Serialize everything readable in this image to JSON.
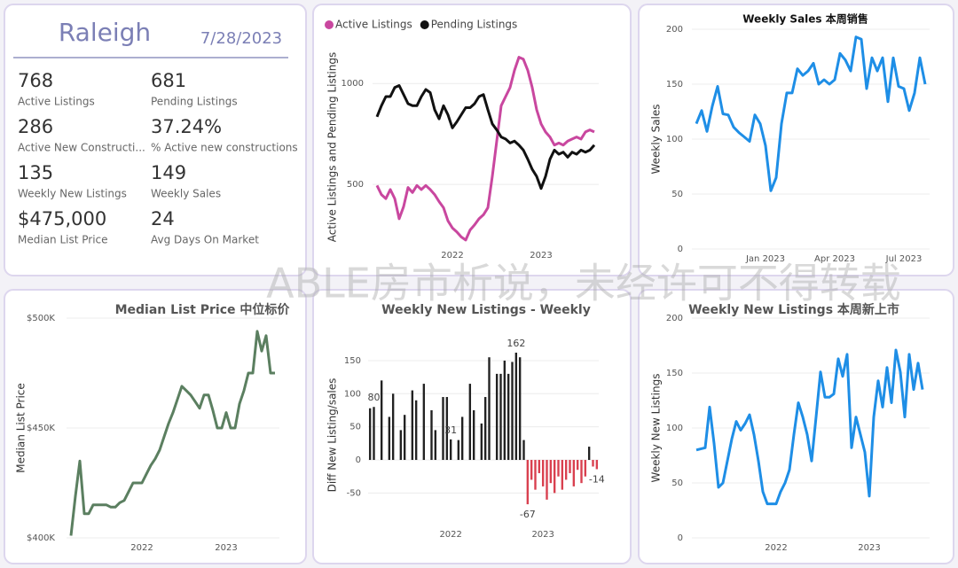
{
  "kpi": {
    "city": "Raleigh",
    "date": "7/28/2023",
    "items": [
      {
        "value": "768",
        "label": "Active Listings"
      },
      {
        "value": "681",
        "label": "Pending Listings"
      },
      {
        "value": "286",
        "label": "Active New Constructi..."
      },
      {
        "value": "37.24%",
        "label": "% Active new constructions"
      },
      {
        "value": "135",
        "label": "Weekly New Listings"
      },
      {
        "value": "149",
        "label": "Weekly Sales"
      },
      {
        "value": "$475,000",
        "label": "Median List Price"
      },
      {
        "value": "24",
        "label": "Avg Days On Market"
      }
    ]
  },
  "watermark": "ABLE房市析说，未经许可不得转载",
  "chart_data": [
    {
      "type": "line",
      "y_label": "Active Listings and Pending Listings",
      "categories": [
        null,
        null,
        null,
        null,
        null,
        null,
        null,
        null,
        null,
        null,
        null,
        null,
        null,
        null,
        null,
        null,
        null,
        "2022",
        null,
        null,
        null,
        null,
        null,
        null,
        null,
        null,
        null,
        null,
        null,
        null,
        null,
        null,
        null,
        null,
        null,
        null,
        null,
        "2023",
        null,
        null,
        null,
        null,
        null,
        null,
        null,
        null,
        null,
        null,
        null,
        null
      ],
      "series": [
        {
          "name": "Active Listings",
          "color": "#c9479f",
          "values": [
            495,
            450,
            430,
            475,
            430,
            330,
            390,
            485,
            460,
            495,
            475,
            495,
            475,
            450,
            415,
            385,
            320,
            285,
            265,
            240,
            225,
            275,
            300,
            330,
            350,
            385,
            540,
            715,
            890,
            935,
            980,
            1065,
            1130,
            1120,
            1065,
            980,
            870,
            800,
            760,
            735,
            695,
            705,
            695,
            715,
            725,
            735,
            725,
            760,
            770,
            760
          ]
        },
        {
          "name": "Pending Listings",
          "color": "#111111",
          "values": [
            835,
            890,
            935,
            935,
            980,
            990,
            945,
            900,
            890,
            890,
            935,
            970,
            955,
            870,
            825,
            890,
            845,
            780,
            810,
            845,
            880,
            880,
            900,
            935,
            945,
            870,
            800,
            770,
            735,
            725,
            705,
            715,
            695,
            670,
            625,
            575,
            540,
            480,
            540,
            625,
            670,
            650,
            660,
            635,
            660,
            650,
            670,
            660,
            670,
            695
          ]
        }
      ],
      "ylim": [
        220,
        1150
      ],
      "yticks": [
        500,
        1000
      ],
      "grid": true
    },
    {
      "type": "line",
      "title": "Weekly Sales 本周销售",
      "y_label": "Weekly Sales",
      "categories": [
        null,
        null,
        null,
        null,
        null,
        null,
        null,
        null,
        null,
        null,
        null,
        null,
        null,
        "Jan 2023",
        null,
        null,
        null,
        null,
        null,
        null,
        null,
        null,
        null,
        null,
        null,
        null,
        "Apr 2023",
        null,
        null,
        null,
        null,
        null,
        null,
        null,
        null,
        null,
        null,
        null,
        null,
        "Jul 2023",
        null,
        null,
        null,
        null
      ],
      "values": [
        114,
        126,
        107,
        130,
        148,
        123,
        122,
        111,
        106,
        102,
        98,
        122,
        114,
        94,
        53,
        65,
        114,
        142,
        142,
        164,
        158,
        162,
        169,
        150,
        154,
        150,
        154,
        178,
        172,
        162,
        193,
        191,
        146,
        174,
        162,
        174,
        134,
        174,
        148,
        146,
        126,
        142,
        174,
        150
      ],
      "color": "#1e8ee6",
      "ylim": [
        0,
        200
      ],
      "yticks": [
        0,
        50,
        100,
        150,
        200
      ],
      "grid": true
    },
    {
      "type": "line",
      "title": "Median List Price  中位标价",
      "y_label": "Median List Price",
      "categories": [
        null,
        null,
        null,
        null,
        null,
        null,
        null,
        null,
        null,
        null,
        null,
        null,
        null,
        null,
        null,
        null,
        "2022",
        null,
        null,
        null,
        null,
        null,
        null,
        null,
        null,
        null,
        null,
        null,
        null,
        null,
        null,
        null,
        null,
        null,
        null,
        "2023",
        null,
        null,
        null,
        null,
        null,
        null,
        null,
        null,
        null,
        null,
        null
      ],
      "values": [
        401000,
        419000,
        435000,
        411000,
        411000,
        415000,
        415000,
        415000,
        415000,
        414000,
        414000,
        416000,
        417000,
        421000,
        425000,
        425000,
        425000,
        429000,
        433000,
        436000,
        440000,
        446000,
        452000,
        457000,
        463000,
        469000,
        467000,
        465000,
        462000,
        459000,
        465000,
        465000,
        458000,
        450000,
        450000,
        457000,
        450000,
        450000,
        461000,
        467000,
        475000,
        475000,
        494000,
        485000,
        492000,
        475000,
        475000
      ],
      "color": "#5b7f60",
      "ylim": [
        400000,
        500000
      ],
      "yticks": [
        {
          "value": 400000,
          "label": "$400K"
        },
        {
          "value": 450000,
          "label": "$450K"
        },
        {
          "value": 500000,
          "label": "$500K"
        }
      ],
      "grid": true
    },
    {
      "type": "bar",
      "title": "Weekly New Listings - Weekly",
      "y_label": "Diff New Listing/sales",
      "categories": [
        null,
        null,
        null,
        null,
        null,
        null,
        null,
        null,
        null,
        null,
        null,
        null,
        null,
        null,
        null,
        null,
        null,
        null,
        null,
        null,
        null,
        "2022",
        null,
        null,
        null,
        null,
        null,
        null,
        null,
        null,
        null,
        null,
        null,
        null,
        null,
        null,
        null,
        null,
        null,
        null,
        null,
        null,
        null,
        null,
        null,
        "2023",
        null,
        null,
        null,
        null,
        null,
        null,
        null,
        null,
        null,
        null,
        null,
        null,
        null,
        null
      ],
      "values": [
        78,
        80,
        null,
        120,
        null,
        65,
        100,
        null,
        45,
        68,
        null,
        105,
        90,
        null,
        115,
        null,
        75,
        45,
        null,
        95,
        95,
        31,
        null,
        30,
        65,
        null,
        115,
        75,
        null,
        55,
        95,
        155,
        null,
        130,
        130,
        150,
        130,
        148,
        162,
        155,
        30,
        -67,
        -30,
        -45,
        -20,
        -40,
        -60,
        -35,
        -50,
        -25,
        -45,
        -30,
        -20,
        -40,
        -15,
        -35,
        -25,
        20,
        -10,
        -14
      ],
      "value_labels": [
        null,
        "80",
        null,
        null,
        null,
        null,
        null,
        null,
        null,
        null,
        null,
        null,
        null,
        null,
        null,
        null,
        null,
        null,
        null,
        null,
        null,
        "31",
        null,
        null,
        null,
        null,
        null,
        null,
        null,
        null,
        null,
        null,
        null,
        null,
        null,
        null,
        null,
        null,
        "162",
        null,
        null,
        "-67",
        null,
        null,
        null,
        null,
        null,
        null,
        null,
        null,
        null,
        null,
        null,
        null,
        null,
        null,
        null,
        null,
        null,
        "-14"
      ],
      "color": "#222222",
      "negative_color": "#d9404f",
      "ylim": [
        -95,
        170
      ],
      "yticks": [
        -50,
        0,
        50,
        100,
        150
      ],
      "grid": true
    },
    {
      "type": "line",
      "title": "Weekly New Listings  本周新上市",
      "y_label": "Weekly New Listings",
      "categories": [
        null,
        null,
        null,
        null,
        null,
        null,
        null,
        null,
        null,
        null,
        null,
        null,
        null,
        null,
        null,
        null,
        null,
        null,
        "2022",
        null,
        null,
        null,
        null,
        null,
        null,
        null,
        null,
        null,
        null,
        null,
        null,
        null,
        null,
        null,
        null,
        null,
        null,
        null,
        null,
        "2023",
        null,
        null,
        null,
        null,
        null,
        null,
        null,
        null,
        null,
        null,
        null,
        null
      ],
      "values": [
        80,
        81,
        82,
        119,
        86,
        46,
        50,
        70,
        90,
        106,
        98,
        104,
        112,
        94,
        70,
        42,
        31,
        31,
        31,
        42,
        50,
        62,
        94,
        123,
        110,
        94,
        70,
        110,
        151,
        128,
        128,
        131,
        163,
        147,
        167,
        82,
        110,
        94,
        78,
        38,
        110,
        143,
        119,
        155,
        123,
        171,
        151,
        110,
        167,
        135,
        159,
        135
      ],
      "color": "#1e8ee6",
      "ylim": [
        0,
        200
      ],
      "yticks": [
        0,
        50,
        100,
        150,
        200
      ],
      "grid": true
    }
  ]
}
